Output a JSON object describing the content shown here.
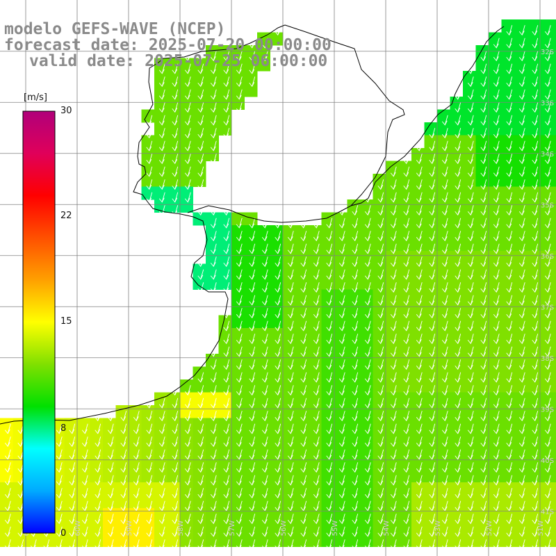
{
  "title": {
    "line1": "modelo GEFS-WAVE (NCEP)",
    "line2": "forecast date: 2025-07-20 00:00:00",
    "line3": "valid date: 2025-07-25 06:00:00"
  },
  "colorbar": {
    "unit": "[m/s]",
    "ticks": [
      "30",
      "22",
      "15",
      "8",
      "0"
    ],
    "min": 0,
    "max": 30,
    "gradient": [
      "#0000ff",
      "#00aaff",
      "#00ffff",
      "#00e000",
      "#80e000",
      "#ffff00",
      "#ffa000",
      "#ff5000",
      "#ff0000",
      "#e0005a",
      "#b0007a"
    ]
  },
  "map": {
    "variable": "wind speed [m/s]",
    "arrow_direction": "from north-northeast (pointing south-southwest)",
    "lon_labels": [
      "61W",
      "60W",
      "59W",
      "58W",
      "57W",
      "56W",
      "55W",
      "54W",
      "53W",
      "52W",
      "51W"
    ],
    "lat_labels": [
      "32S",
      "33S",
      "34S",
      "35S",
      "36S",
      "37S",
      "38S",
      "39S",
      "40S",
      "41S"
    ],
    "lon_range": [
      -61.5,
      -50.5
    ],
    "lat_range": [
      -31.5,
      -41.5
    ],
    "land_color": "#ffffff",
    "coast_color": "#000000",
    "grid_color": "#808080"
  }
}
